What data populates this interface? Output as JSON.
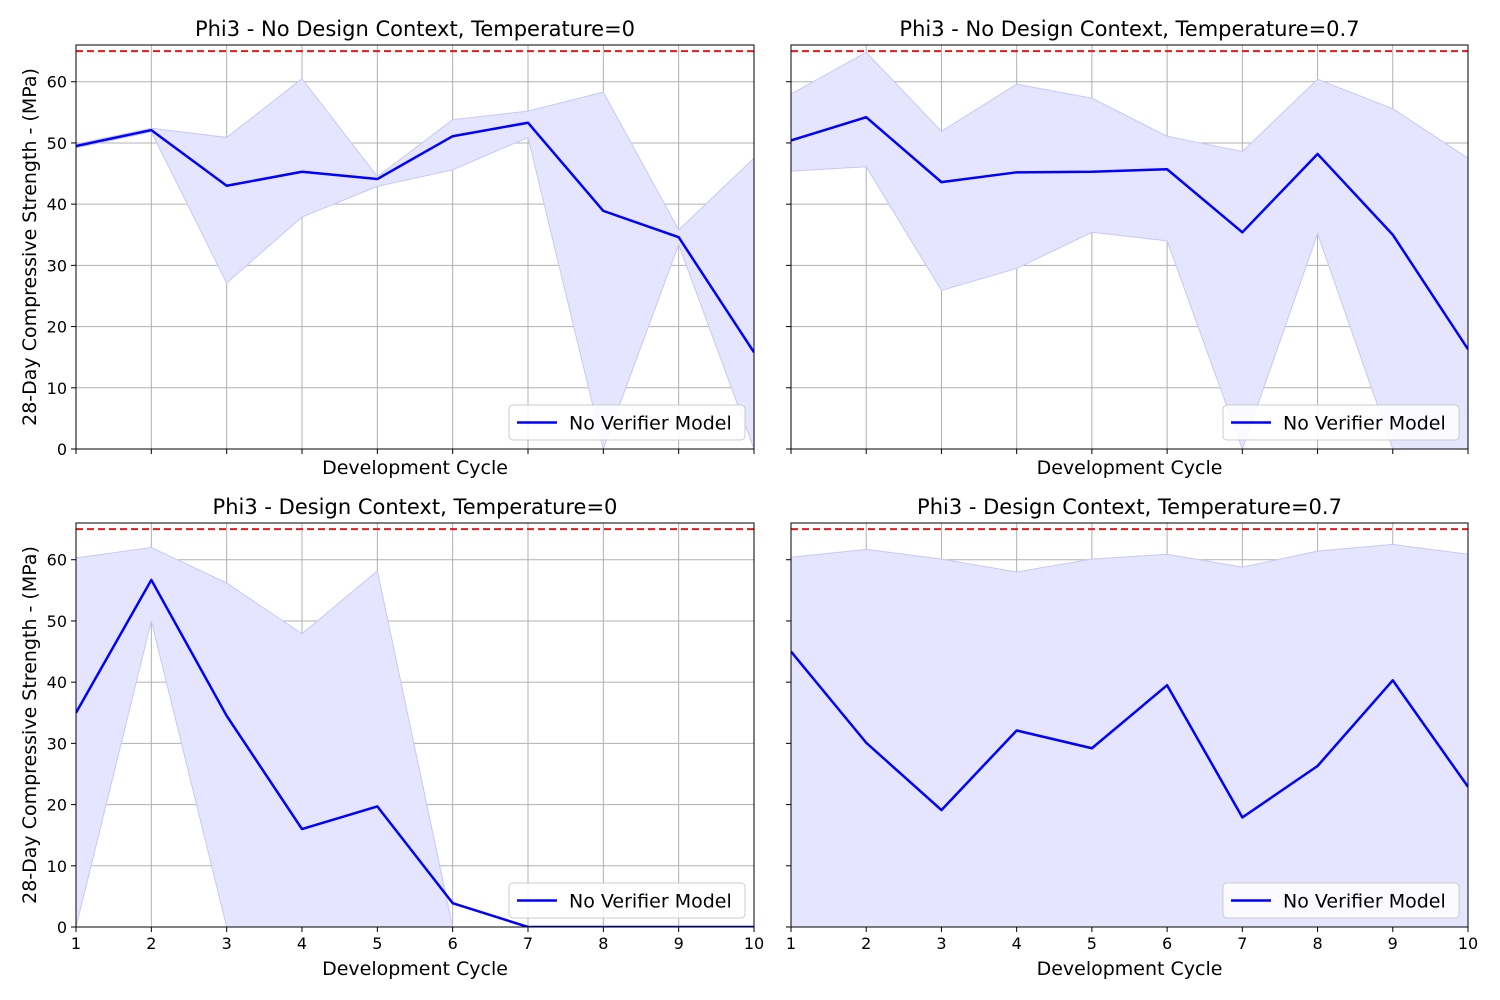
{
  "figure": {
    "ylabel": "28-Day Compressive Strength - (MPa)",
    "xlabel": "Development Cycle"
  },
  "colors": {
    "series": "#0000ff",
    "band": "#e5e5ff",
    "band_edge": "#c8c8f6",
    "target_line": "#e41a1c",
    "grid": "#b0b0b0"
  },
  "chart_data": [
    {
      "type": "line",
      "title": "Phi3 -  No Design Context, Temperature=0",
      "xlabel": "Development Cycle",
      "ylabel": "28-Day Compressive Strength - (MPa)",
      "x": [
        1,
        2,
        3,
        4,
        5,
        6,
        7,
        8,
        9,
        10
      ],
      "xlim": [
        1,
        10
      ],
      "ylim": [
        0,
        66
      ],
      "xticks": [
        1,
        2,
        3,
        4,
        5,
        6,
        7,
        8,
        9,
        10
      ],
      "yticks": [
        0,
        10,
        20,
        30,
        40,
        50,
        60
      ],
      "grid": true,
      "reference_line": {
        "y": 65,
        "style": "dashed"
      },
      "legend": {
        "placement": "lower-right",
        "entries": [
          "No Verifier Model"
        ]
      },
      "series": [
        {
          "name": "No Verifier Model",
          "values": [
            49.5,
            52.1,
            43.0,
            45.3,
            44.1,
            51.1,
            53.3,
            38.9,
            34.6,
            15.8
          ],
          "band_upper": [
            49.8,
            52.4,
            50.9,
            60.5,
            44.5,
            53.8,
            55.2,
            58.3,
            35.8,
            47.5
          ],
          "band_lower": [
            49.2,
            51.8,
            27.1,
            37.9,
            42.9,
            45.6,
            50.9,
            0.0,
            33.4,
            0.0
          ]
        }
      ]
    },
    {
      "type": "line",
      "title": "Phi3 -  No Design Context, Temperature=0.7",
      "xlabel": "Development Cycle",
      "ylabel": "",
      "x": [
        1,
        2,
        3,
        4,
        5,
        6,
        7,
        8,
        9,
        10
      ],
      "xlim": [
        1,
        10
      ],
      "ylim": [
        0,
        66
      ],
      "xticks": [
        1,
        2,
        3,
        4,
        5,
        6,
        7,
        8,
        9,
        10
      ],
      "yticks": [
        0,
        10,
        20,
        30,
        40,
        50,
        60
      ],
      "grid": true,
      "reference_line": {
        "y": 65,
        "style": "dashed"
      },
      "legend": {
        "placement": "lower-right",
        "entries": [
          "No Verifier Model"
        ]
      },
      "series": [
        {
          "name": "No Verifier Model",
          "values": [
            50.4,
            54.2,
            43.6,
            45.2,
            45.3,
            45.7,
            35.4,
            48.2,
            35.0,
            16.3
          ],
          "band_upper": [
            58.0,
            64.8,
            51.9,
            59.6,
            57.3,
            51.1,
            48.6,
            60.4,
            55.6,
            47.5
          ],
          "band_lower": [
            45.4,
            46.1,
            25.9,
            29.5,
            35.4,
            34.0,
            0.0,
            35.2,
            0.0,
            0.0
          ]
        }
      ]
    },
    {
      "type": "line",
      "title": "Phi3 -  Design Context, Temperature=0",
      "xlabel": "Development Cycle",
      "ylabel": "28-Day Compressive Strength - (MPa)",
      "x": [
        1,
        2,
        3,
        4,
        5,
        6,
        7,
        8,
        9,
        10
      ],
      "xlim": [
        1,
        10
      ],
      "ylim": [
        0,
        66
      ],
      "xticks": [
        1,
        2,
        3,
        4,
        5,
        6,
        7,
        8,
        9,
        10
      ],
      "yticks": [
        0,
        10,
        20,
        30,
        40,
        50,
        60
      ],
      "grid": true,
      "reference_line": {
        "y": 65,
        "style": "dashed"
      },
      "legend": {
        "placement": "lower-right",
        "entries": [
          "No Verifier Model"
        ]
      },
      "series": [
        {
          "name": "No Verifier Model",
          "values": [
            35.0,
            56.7,
            34.5,
            16.0,
            19.7,
            3.9,
            0.0,
            0.0,
            0.0,
            0.0
          ],
          "band_upper": [
            60.3,
            62.0,
            56.2,
            47.9,
            58.2,
            0.0,
            0.0,
            0.0,
            0.0,
            0.0
          ],
          "band_lower": [
            0.0,
            50.0,
            0.0,
            0.0,
            0.0,
            0.0,
            0.0,
            0.0,
            0.0,
            0.0
          ]
        }
      ]
    },
    {
      "type": "line",
      "title": "Phi3 -  Design Context, Temperature=0.7",
      "xlabel": "Development Cycle",
      "ylabel": "",
      "x": [
        1,
        2,
        3,
        4,
        5,
        6,
        7,
        8,
        9,
        10
      ],
      "xlim": [
        1,
        10
      ],
      "ylim": [
        0,
        66
      ],
      "xticks": [
        1,
        2,
        3,
        4,
        5,
        6,
        7,
        8,
        9,
        10
      ],
      "yticks": [
        0,
        10,
        20,
        30,
        40,
        50,
        60
      ],
      "grid": true,
      "reference_line": {
        "y": 65,
        "style": "dashed"
      },
      "legend": {
        "placement": "lower-right",
        "entries": [
          "No Verifier Model"
        ]
      },
      "series": [
        {
          "name": "No Verifier Model",
          "values": [
            45.0,
            30.1,
            19.1,
            32.1,
            29.2,
            39.5,
            17.9,
            26.3,
            40.3,
            22.9
          ],
          "band_upper": [
            60.4,
            61.7,
            60.1,
            58.0,
            60.1,
            60.9,
            58.8,
            61.4,
            62.5,
            60.9
          ],
          "band_lower": [
            0.0,
            0.0,
            0.0,
            0.0,
            0.0,
            0.0,
            0.0,
            0.0,
            0.0,
            0.0
          ]
        }
      ]
    }
  ]
}
